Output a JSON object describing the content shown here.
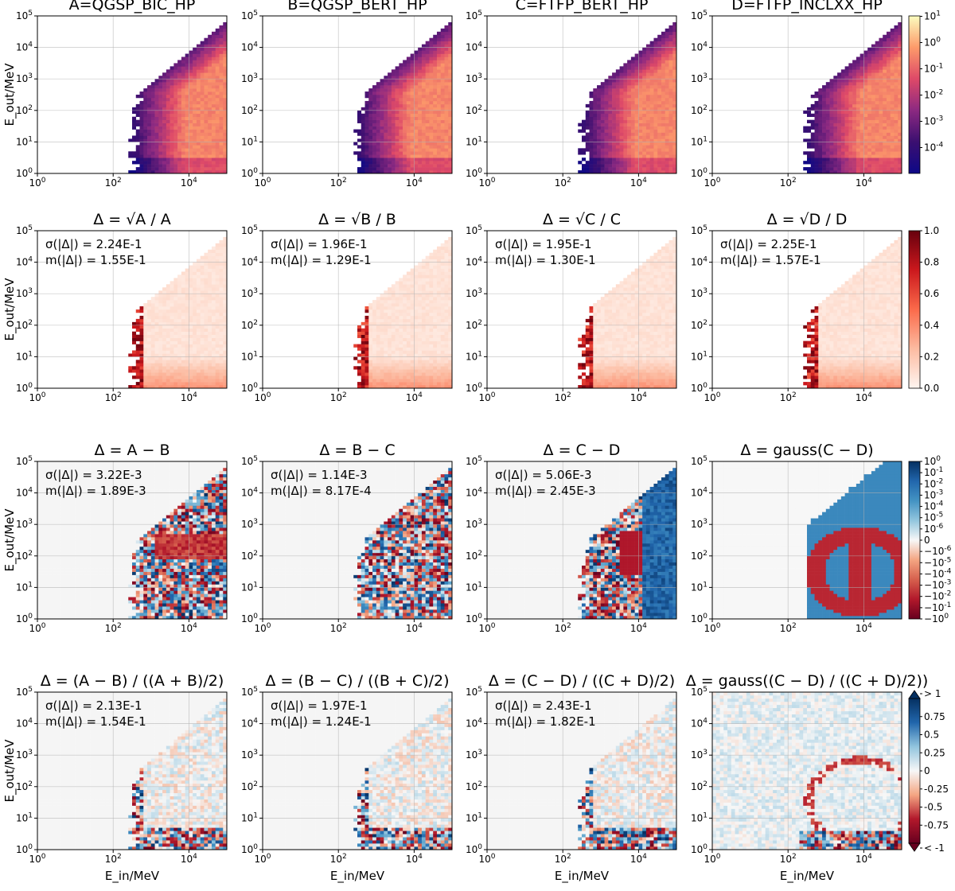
{
  "figure": {
    "column_titles": [
      "A=QGSP_BIC_HP",
      "B=QGSP_BERT_HP",
      "C=FTFP_BERT_HP",
      "D=FTFP_INCLXX_HP"
    ],
    "x_ticks": [
      "10^0",
      "10^2",
      "10^4"
    ],
    "y_ticks": [
      "10^0",
      "10^1",
      "10^2",
      "10^3",
      "10^4",
      "10^5"
    ],
    "row_titles": [
      [
        "A=QGSP_BIC_HP",
        "B=QGSP_BERT_HP",
        "C=FTFP_BERT_HP",
        "D=FTFP_INCLXX_HP"
      ],
      [
        "Δ = √A / A",
        "Δ = √B / B",
        "Δ = √C / C",
        "Δ = √D / D"
      ],
      [
        "Δ = A − B",
        "Δ = B − C",
        "Δ = C − D",
        "Δ = gauss(C − D)"
      ],
      [
        "Δ = (A − B) / ((A + B)/2)",
        "Δ = (B − C) / ((B + C)/2)",
        "Δ = (C − D) / ((C + D)/2)",
        "Δ = gauss((C − D) / ((C + D)/2))"
      ]
    ],
    "stats": [
      [
        null,
        null,
        null,
        null
      ],
      [
        [
          "σ(|Δ|) = 2.24E-1",
          "m(|Δ|) = 1.55E-1"
        ],
        [
          "σ(|Δ|) = 1.96E-1",
          "m(|Δ|) = 1.29E-1"
        ],
        [
          "σ(|Δ|) = 1.95E-1",
          "m(|Δ|) = 1.30E-1"
        ],
        [
          "σ(|Δ|) = 2.25E-1",
          "m(|Δ|) = 1.57E-1"
        ]
      ],
      [
        [
          "σ(|Δ|) = 3.22E-3",
          "m(|Δ|) = 1.89E-3"
        ],
        [
          "σ(|Δ|) = 1.14E-3",
          "m(|Δ|) = 8.17E-4"
        ],
        [
          "σ(|Δ|) = 5.06E-3",
          "m(|Δ|) = 2.45E-3"
        ],
        null
      ],
      [
        [
          "σ(|Δ|) = 2.13E-1",
          "m(|Δ|) = 1.54E-1"
        ],
        [
          "σ(|Δ|) = 1.97E-1",
          "m(|Δ|) = 1.24E-1"
        ],
        [
          "σ(|Δ|) = 2.43E-1",
          "m(|Δ|) = 1.82E-1"
        ],
        null
      ]
    ],
    "ylabel": "E_out/MeV",
    "xlabel": "E_in/MeV",
    "colorbars": [
      {
        "ticks": [
          "10^1",
          "10^0",
          "10^-1",
          "10^-2",
          "10^-3",
          "10^-4"
        ],
        "colors": [
          "#fcfdbf",
          "#fd9a6a",
          "#de4968",
          "#8c2981",
          "#3b0f70",
          "#0d0887"
        ]
      },
      {
        "ticks": [
          "1.0",
          "0.8",
          "0.6",
          "0.4",
          "0.2",
          "0.0"
        ],
        "colors": [
          "#67000d",
          "#cb181d",
          "#fb6a4a",
          "#fcbba1",
          "#fff5f0"
        ]
      },
      {
        "ticks": [
          "10^0",
          "10^-1",
          "10^-2",
          "10^-3",
          "10^-4",
          "10^-5",
          "10^-6",
          "0",
          "−10^-6",
          "−10^-5",
          "−10^-4",
          "−10^-3",
          "−10^-2",
          "−10^-1",
          "−10^0"
        ],
        "colors": [
          "#053061",
          "#2166ac",
          "#4393c3",
          "#92c5de",
          "#f7f7f7",
          "#f4a582",
          "#d6604d",
          "#b2182b",
          "#67001f"
        ]
      },
      {
        "ticks": [
          "> 1",
          "0.75",
          "0.5",
          "0.25",
          "0",
          "-0.25",
          "-0.5",
          "-0.75",
          "< -1"
        ],
        "colors": [
          "#053061",
          "#2166ac",
          "#92c5de",
          "#f7f7f7",
          "#f4a582",
          "#b2182b",
          "#67001f"
        ]
      }
    ]
  },
  "chart_data": [
    {
      "type": "heatmap",
      "title": "A=QGSP_BIC_HP",
      "ylabel": "E_out/MeV",
      "x_scale": "log",
      "y_scale": "log",
      "xlim": [
        1,
        100000
      ],
      "ylim": [
        1,
        100000
      ],
      "colorbar": "10^-5 to 10^1 (log)",
      "grid": true
    },
    {
      "type": "heatmap",
      "title": "B=QGSP_BERT_HP",
      "x_scale": "log",
      "y_scale": "log",
      "xlim": [
        1,
        100000
      ],
      "ylim": [
        1,
        100000
      ],
      "grid": true
    },
    {
      "type": "heatmap",
      "title": "C=FTFP_BERT_HP",
      "x_scale": "log",
      "y_scale": "log",
      "xlim": [
        1,
        100000
      ],
      "ylim": [
        1,
        100000
      ],
      "grid": true
    },
    {
      "type": "heatmap",
      "title": "D=FTFP_INCLXX_HP",
      "x_scale": "log",
      "y_scale": "log",
      "xlim": [
        1,
        100000
      ],
      "ylim": [
        1,
        100000
      ],
      "grid": true
    },
    {
      "type": "heatmap",
      "title": "Δ = √A/A",
      "sigma": "2.24E-1",
      "mean": "1.55E-1",
      "colorbar_range": [
        0,
        1
      ]
    },
    {
      "type": "heatmap",
      "title": "Δ = √B/B",
      "sigma": "1.96E-1",
      "mean": "1.29E-1",
      "colorbar_range": [
        0,
        1
      ]
    },
    {
      "type": "heatmap",
      "title": "Δ = √C/C",
      "sigma": "1.95E-1",
      "mean": "1.30E-1",
      "colorbar_range": [
        0,
        1
      ]
    },
    {
      "type": "heatmap",
      "title": "Δ = √D/D",
      "sigma": "2.25E-1",
      "mean": "1.57E-1",
      "colorbar_range": [
        0,
        1
      ]
    },
    {
      "type": "heatmap",
      "title": "Δ = A − B",
      "sigma": "3.22E-3",
      "mean": "1.89E-3",
      "colorbar": "symlog"
    },
    {
      "type": "heatmap",
      "title": "Δ = B − C",
      "sigma": "1.14E-3",
      "mean": "8.17E-4",
      "colorbar": "symlog"
    },
    {
      "type": "heatmap",
      "title": "Δ = C − D",
      "sigma": "5.06E-3",
      "mean": "2.45E-3",
      "colorbar": "symlog"
    },
    {
      "type": "heatmap",
      "title": "Δ = gauss(C − D)",
      "colorbar": "symlog"
    },
    {
      "type": "heatmap",
      "title": "Δ = (A − B)/((A + B)/2)",
      "sigma": "2.13E-1",
      "mean": "1.54E-1",
      "xlabel": "E_in/MeV",
      "colorbar_range": [
        -1,
        1
      ]
    },
    {
      "type": "heatmap",
      "title": "Δ = (B − C)/((B + C)/2)",
      "sigma": "1.97E-1",
      "mean": "1.24E-1",
      "xlabel": "E_in/MeV",
      "colorbar_range": [
        -1,
        1
      ]
    },
    {
      "type": "heatmap",
      "title": "Δ = (C − D)/((C + D)/2)",
      "sigma": "2.43E-1",
      "mean": "1.82E-1",
      "xlabel": "E_in/MeV",
      "colorbar_range": [
        -1,
        1
      ]
    },
    {
      "type": "heatmap",
      "title": "Δ = gauss((C − D)/((C + D)/2))",
      "xlabel": "E_in/MeV",
      "colorbar_range": [
        -1,
        1
      ]
    }
  ]
}
